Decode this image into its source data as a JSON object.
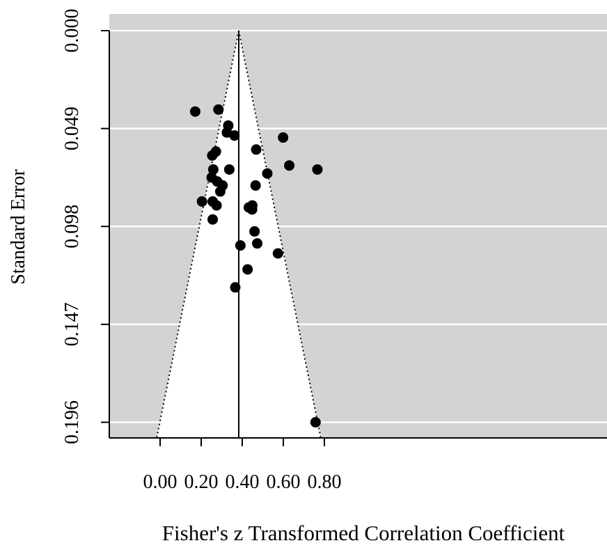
{
  "chart_data": {
    "type": "scatter",
    "title": "",
    "xlabel": "Fisher's z Transformed Correlation Coefficient",
    "ylabel": "Standard Error",
    "xlim": [
      -0.1,
      0.87
    ],
    "ylim": [
      0.0,
      0.204
    ],
    "y_reversed": true,
    "x_ticks": [
      "0.00",
      "0.20",
      "0.40",
      "0.60",
      "0.80"
    ],
    "x_tick_values": [
      0.0,
      0.2,
      0.4,
      0.6,
      0.8
    ],
    "y_ticks": [
      "0.000",
      "0.049",
      "0.098",
      "0.147",
      "0.196"
    ],
    "y_tick_values": [
      0.0,
      0.049,
      0.098,
      0.147,
      0.196
    ],
    "grid": true,
    "funnel": {
      "center": 0.383,
      "z_multiplier": 1.96,
      "se_max": 0.204
    },
    "points": [
      {
        "x": 0.171,
        "y": 0.0405
      },
      {
        "x": 0.284,
        "y": 0.0395
      },
      {
        "x": 0.332,
        "y": 0.0475
      },
      {
        "x": 0.325,
        "y": 0.051
      },
      {
        "x": 0.362,
        "y": 0.0525
      },
      {
        "x": 0.254,
        "y": 0.0625
      },
      {
        "x": 0.272,
        "y": 0.0605
      },
      {
        "x": 0.259,
        "y": 0.0695
      },
      {
        "x": 0.251,
        "y": 0.0735
      },
      {
        "x": 0.337,
        "y": 0.0695
      },
      {
        "x": 0.278,
        "y": 0.0755
      },
      {
        "x": 0.304,
        "y": 0.0775
      },
      {
        "x": 0.293,
        "y": 0.0805
      },
      {
        "x": 0.204,
        "y": 0.0855
      },
      {
        "x": 0.256,
        "y": 0.0855
      },
      {
        "x": 0.275,
        "y": 0.0875
      },
      {
        "x": 0.256,
        "y": 0.0945
      },
      {
        "x": 0.468,
        "y": 0.0595
      },
      {
        "x": 0.599,
        "y": 0.0535
      },
      {
        "x": 0.629,
        "y": 0.0675
      },
      {
        "x": 0.766,
        "y": 0.0695
      },
      {
        "x": 0.522,
        "y": 0.0715
      },
      {
        "x": 0.465,
        "y": 0.0775
      },
      {
        "x": 0.432,
        "y": 0.0885
      },
      {
        "x": 0.449,
        "y": 0.0875
      },
      {
        "x": 0.448,
        "y": 0.0895
      },
      {
        "x": 0.46,
        "y": 0.1005
      },
      {
        "x": 0.473,
        "y": 0.1065
      },
      {
        "x": 0.391,
        "y": 0.1075
      },
      {
        "x": 0.574,
        "y": 0.1115
      },
      {
        "x": 0.426,
        "y": 0.1195
      },
      {
        "x": 0.366,
        "y": 0.1285
      },
      {
        "x": 0.757,
        "y": 0.196
      }
    ]
  }
}
